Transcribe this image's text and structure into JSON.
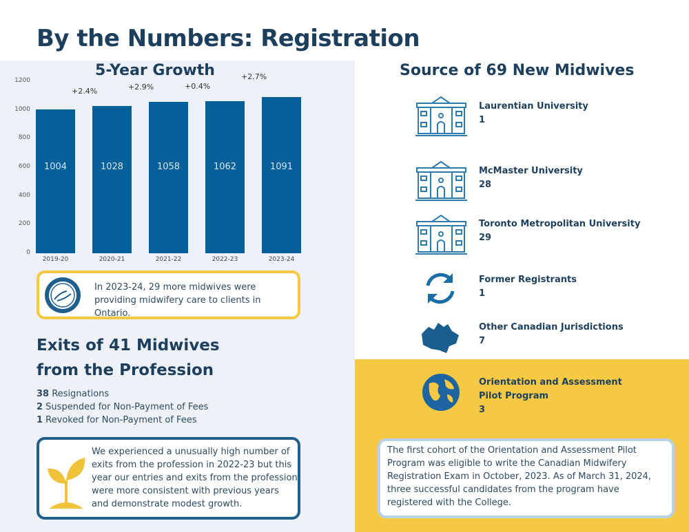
{
  "title": "By the Numbers: Registration",
  "chart_data": {
    "type": "bar",
    "title": "5-Year Growth",
    "categories": [
      "2019-20",
      "2020-21",
      "2021-22",
      "2022-23",
      "2023-24"
    ],
    "values": [
      1004,
      1028,
      1058,
      1062,
      1091
    ],
    "growth_labels": [
      "+2.4%",
      "+2.9%",
      "+0.4%",
      "+2.7%"
    ],
    "yticks": [
      0,
      200,
      400,
      600,
      800,
      1000,
      1200
    ],
    "ylim": [
      0,
      1200
    ],
    "grid": false,
    "bar_color": "#05609a"
  },
  "growth_note": "In 2023-24, 29 more midwives were providing midwifery care to clients in Ontario.",
  "exits": {
    "title_line1": "Exits of 41 Midwives",
    "title_line2": "from the Profession",
    "items": [
      {
        "count": "38",
        "label": " Resignations"
      },
      {
        "count": "2",
        "label": " Suspended for Non-Payment of Fees"
      },
      {
        "count": "1",
        "label": " Revoked for Non-Payment of Fees"
      }
    ],
    "note": "We experienced a unusually high number of exits from the profession in 2022-23 but this year our entries and exits from the profession were more consistent with previous years and demonstrate modest growth."
  },
  "sources": {
    "title": "Source of 69 New Midwives",
    "items": [
      {
        "name": "Laurentian University",
        "count": "1",
        "icon": "university-icon"
      },
      {
        "name": "McMaster University",
        "count": "28",
        "icon": "university-icon"
      },
      {
        "name": "Toronto Metropolitan University",
        "count": "29",
        "icon": "university-icon"
      },
      {
        "name": "Former Registrants",
        "count": "1",
        "icon": "refresh-icon"
      },
      {
        "name": "Other Canadian Jurisdictions",
        "count": "7",
        "icon": "canada-map-icon"
      },
      {
        "name": "Orientation and Assessment Pilot Program",
        "count": "3",
        "icon": "globe-icon"
      }
    ],
    "note": "The first cohort of the Orientation and Assessment Pilot Program was eligible to write the Canadian Midwifery Registration Exam in October, 2023. As of March 31, 2024, three successful candidates from the program have registered with the College."
  },
  "colors": {
    "navy": "#1d3f5e",
    "bar": "#05609a",
    "yellow": "#f6c944",
    "panel": "#eef2f8"
  }
}
